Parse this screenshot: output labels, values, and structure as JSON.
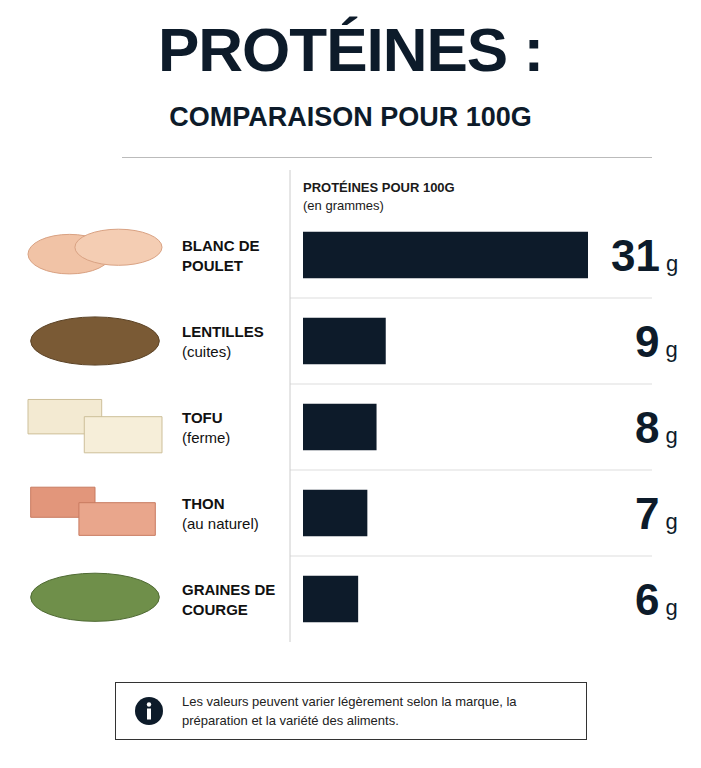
{
  "chart_data": {
    "type": "bar",
    "orientation": "horizontal",
    "title": "PROTÉINES :",
    "subtitle": "COMPARAISON POUR 100G",
    "x_label": "PROTÉINES POUR 100G",
    "x_label_note": "(en grammes)",
    "categories": [
      "BLANC DE POULET",
      "LENTILLES",
      "TOFU",
      "THON",
      "GRAINES DE COURGE"
    ],
    "category_notes": [
      null,
      "(cuites)",
      "(ferme)",
      "(au naturel)",
      null
    ],
    "values": [
      31,
      9,
      8,
      7,
      6
    ],
    "value_labels": [
      "31 g",
      "9 g",
      "8 g",
      "7 g",
      "6 g"
    ],
    "data_labels": true,
    "color": "#0d1b2a",
    "xlim": [
      0,
      31
    ],
    "tick_labels": false,
    "grid": false,
    "footnote": "Les valeurs peuvent varier légèrement selon la marque, la préparation et la variété des aliments."
  }
}
